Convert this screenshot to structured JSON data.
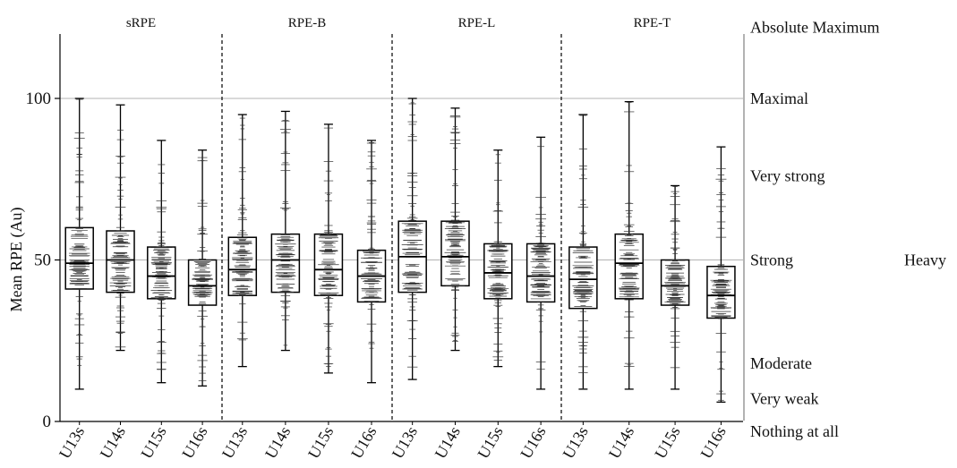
{
  "chart_data": {
    "type": "boxplot",
    "ylabel": "Mean RPE (Au)",
    "ylim": [
      0,
      120
    ],
    "yticks": [
      0,
      50,
      100
    ],
    "reference_lines": [
      50,
      100
    ],
    "categories": [
      "U13s",
      "U14s",
      "U15s",
      "U16s"
    ],
    "panels": [
      {
        "title": "sRPE",
        "boxes": [
          {
            "category": "U13s",
            "min": 10,
            "q1": 41,
            "median": 49,
            "q3": 60,
            "max": 100
          },
          {
            "category": "U14s",
            "min": 22,
            "q1": 40,
            "median": 50,
            "q3": 59,
            "max": 98
          },
          {
            "category": "U15s",
            "min": 12,
            "q1": 38,
            "median": 45,
            "q3": 54,
            "max": 87
          },
          {
            "category": "U16s",
            "min": 11,
            "q1": 36,
            "median": 42,
            "q3": 50,
            "max": 84
          }
        ]
      },
      {
        "title": "RPE-B",
        "boxes": [
          {
            "category": "U13s",
            "min": 17,
            "q1": 39,
            "median": 47,
            "q3": 57,
            "max": 95
          },
          {
            "category": "U14s",
            "min": 22,
            "q1": 40,
            "median": 50,
            "q3": 58,
            "max": 96
          },
          {
            "category": "U15s",
            "min": 15,
            "q1": 39,
            "median": 47,
            "q3": 58,
            "max": 92
          },
          {
            "category": "U16s",
            "min": 12,
            "q1": 37,
            "median": 45,
            "q3": 53,
            "max": 87
          }
        ]
      },
      {
        "title": "RPE-L",
        "boxes": [
          {
            "category": "U13s",
            "min": 13,
            "q1": 40,
            "median": 51,
            "q3": 62,
            "max": 100
          },
          {
            "category": "U14s",
            "min": 22,
            "q1": 42,
            "median": 51,
            "q3": 62,
            "max": 97
          },
          {
            "category": "U15s",
            "min": 17,
            "q1": 38,
            "median": 46,
            "q3": 55,
            "max": 84
          },
          {
            "category": "U16s",
            "min": 10,
            "q1": 37,
            "median": 45,
            "q3": 55,
            "max": 88
          }
        ]
      },
      {
        "title": "RPE-T",
        "boxes": [
          {
            "category": "U13s",
            "min": 10,
            "q1": 35,
            "median": 44,
            "q3": 54,
            "max": 95
          },
          {
            "category": "U14s",
            "min": 10,
            "q1": 38,
            "median": 49,
            "q3": 58,
            "max": 99
          },
          {
            "category": "U15s",
            "min": 10,
            "q1": 36,
            "median": 42,
            "q3": 50,
            "max": 73
          },
          {
            "category": "U16s",
            "min": 6,
            "q1": 32,
            "median": 39,
            "q3": 48,
            "max": 85
          }
        ]
      }
    ],
    "scale_labels": [
      {
        "text": "Absolute Maximum",
        "value": 122
      },
      {
        "text": "Maximal",
        "value": 100
      },
      {
        "text": "Very strong",
        "value": 76
      },
      {
        "text": "Strong",
        "value": 50
      },
      {
        "text": "Moderate",
        "value": 18
      },
      {
        "text": "Very weak",
        "value": 7
      },
      {
        "text": "Nothing at all",
        "value": -3
      }
    ],
    "side_label": {
      "text": "Heavy",
      "value": 50
    },
    "colors": {
      "line": "#000000",
      "points": "#333333",
      "reference": "#9a9a9a"
    }
  }
}
